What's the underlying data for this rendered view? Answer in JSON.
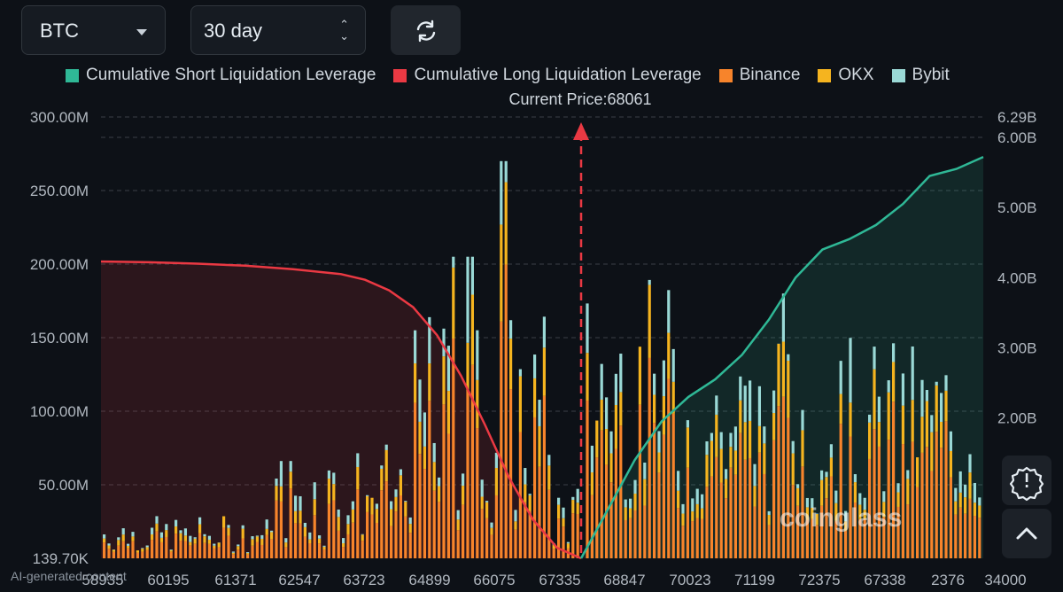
{
  "controls": {
    "coin": "BTC",
    "range": "30 day"
  },
  "legend": [
    {
      "label": "Cumulative Short Liquidation Leverage",
      "color": "#2fb896"
    },
    {
      "label": "Cumulative Long Liquidation Leverage",
      "color": "#ea3943"
    },
    {
      "label": "Binance",
      "color": "#f7842b"
    },
    {
      "label": "OKX",
      "color": "#f5b41f"
    },
    {
      "label": "Bybit",
      "color": "#9ad9d6"
    }
  ],
  "current_price_label": "Current Price:68061",
  "watermark": "coinglass",
  "ai_note": "AI-generated content",
  "chart_data": {
    "type": "bar",
    "current_price": 68061,
    "x_tick_labels": [
      "58935",
      "60195",
      "61371",
      "62547",
      "63723",
      "64899",
      "66075",
      "67335",
      "68847",
      "70023",
      "71199",
      "72375",
      "67338",
      "2376",
      "34000"
    ],
    "y_left_ticks": [
      "139.70K",
      "50.00M",
      "100.00M",
      "150.00M",
      "200.00M",
      "250.00M",
      "300.00M"
    ],
    "y_left_max": 300000000,
    "y_right_ticks": [
      "2.00B",
      "3.00B",
      "4.00B",
      "5.00B",
      "6.00B",
      "6.29B"
    ],
    "y_right_max": 6290000000,
    "series": [
      {
        "name": "Binance",
        "color": "#f7842b"
      },
      {
        "name": "OKX",
        "color": "#f5b41f"
      },
      {
        "name": "Bybit",
        "color": "#9ad9d6"
      },
      {
        "name": "Cumulative Long Liquidation Leverage",
        "color": "#ea3943",
        "points": [
          [
            0,
            4.23
          ],
          [
            10,
            4.22
          ],
          [
            20,
            4.2
          ],
          [
            30,
            4.17
          ],
          [
            40,
            4.12
          ],
          [
            50,
            4.05
          ],
          [
            55,
            3.97
          ],
          [
            60,
            3.82
          ],
          [
            65,
            3.58
          ],
          [
            70,
            3.18
          ],
          [
            75,
            2.6
          ],
          [
            80,
            1.9
          ],
          [
            85,
            1.15
          ],
          [
            90,
            0.55
          ],
          [
            95,
            0.15
          ],
          [
            100,
            0.0
          ]
        ]
      },
      {
        "name": "Cumulative Short Liquidation Leverage",
        "color": "#2fb896",
        "points": [
          [
            0,
            0.0
          ],
          [
            5,
            0.7
          ],
          [
            10,
            1.4
          ],
          [
            15,
            1.95
          ],
          [
            20,
            2.3
          ],
          [
            25,
            2.55
          ],
          [
            30,
            2.9
          ],
          [
            35,
            3.4
          ],
          [
            40,
            4.0
          ],
          [
            45,
            4.4
          ],
          [
            50,
            4.55
          ],
          [
            55,
            4.75
          ],
          [
            60,
            5.05
          ],
          [
            65,
            5.45
          ],
          [
            70,
            5.55
          ],
          [
            75,
            5.72
          ]
        ]
      }
    ],
    "annotations": [
      "Current Price:68061"
    ]
  }
}
